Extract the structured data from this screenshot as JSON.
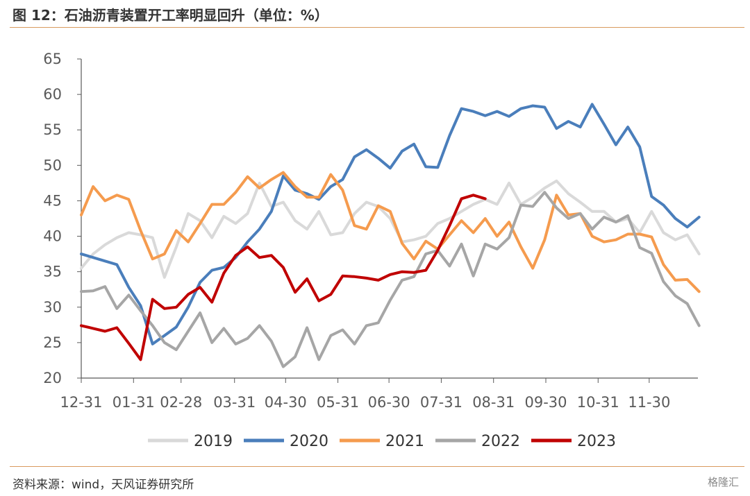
{
  "header": {
    "title": "图 12：石油沥青装置开工率明显回升（单位：%）"
  },
  "footer": {
    "source": "资料来源：wind，天风证券研究所",
    "watermark": "格隆汇"
  },
  "chart_data": {
    "type": "line",
    "title": "",
    "xlabel": "",
    "ylabel": "",
    "ylim": [
      20,
      65
    ],
    "yticks": [
      20,
      25,
      30,
      35,
      40,
      45,
      50,
      55,
      60,
      65
    ],
    "x_ticks": [
      "12-31",
      "01-31",
      "02-28",
      "03-31",
      "04-30",
      "05-31",
      "06-30",
      "07-31",
      "08-31",
      "09-30",
      "10-31",
      "11-30"
    ],
    "x_tick_positions": [
      0,
      4.4,
      8.4,
      12.9,
      17.2,
      21.6,
      25.9,
      30.3,
      34.7,
      39.1,
      43.5,
      47.8
    ],
    "x_range": [
      0,
      51.9
    ],
    "grid": false,
    "legend_position": "bottom",
    "series": [
      {
        "name": "2019",
        "color": "#d9d9d9",
        "values": [
          35.5,
          37.5,
          38.8,
          39.8,
          40.5,
          40.2,
          39.8,
          34.2,
          38.5,
          43.2,
          42.2,
          39.8,
          42.8,
          41.8,
          43.2,
          47.5,
          44.2,
          44.8,
          42.2,
          41.0,
          43.5,
          40.2,
          40.5,
          43.2,
          44.8,
          44.2,
          42.5,
          39.2,
          39.5,
          40.0,
          41.8,
          42.5,
          43.5,
          44.5,
          45.2,
          44.5,
          47.5,
          44.5,
          45.5,
          46.8,
          47.8,
          46.0,
          44.8,
          43.5,
          43.5,
          42.0,
          42.5,
          40.5,
          43.5,
          40.5,
          39.5,
          40.2,
          37.5
        ]
      },
      {
        "name": "2020",
        "color": "#4a7ebb",
        "values": [
          37.5,
          37.0,
          36.5,
          36.0,
          32.8,
          30.2,
          24.8,
          26.0,
          27.2,
          30.0,
          33.5,
          35.2,
          35.6,
          37.0,
          39.2,
          41.0,
          43.5,
          48.5,
          46.5,
          46.0,
          45.2,
          47.0,
          48.0,
          51.2,
          52.2,
          51.0,
          49.6,
          52.0,
          53.0,
          49.8,
          49.7,
          54.2,
          58.0,
          57.6,
          57.0,
          57.6,
          56.9,
          58.0,
          58.4,
          58.2,
          55.2,
          56.2,
          55.4,
          58.6,
          55.8,
          52.9,
          55.4,
          52.6,
          45.6,
          44.4,
          42.5,
          41.3,
          42.7
        ]
      },
      {
        "name": "2021",
        "color": "#f59b4e",
        "values": [
          43.0,
          47.0,
          45.0,
          45.8,
          45.2,
          40.8,
          36.8,
          37.5,
          40.8,
          39.2,
          41.8,
          44.5,
          44.5,
          46.2,
          48.4,
          46.8,
          48.0,
          49.0,
          47.0,
          45.5,
          45.5,
          48.7,
          46.5,
          41.5,
          41.0,
          44.3,
          43.5,
          39.0,
          36.8,
          39.3,
          38.2,
          40.2,
          42.2,
          40.5,
          42.5,
          40.0,
          42.0,
          38.5,
          35.5,
          39.5,
          45.8,
          43.0,
          43.2,
          40.0,
          39.2,
          39.5,
          40.3,
          40.3,
          39.9,
          36.0,
          33.8,
          33.9,
          32.2
        ]
      },
      {
        "name": "2022",
        "color": "#a6a6a6",
        "values": [
          32.2,
          32.3,
          32.9,
          29.8,
          31.7,
          29.5,
          27.4,
          25.0,
          24.0,
          26.6,
          29.2,
          25.0,
          27.0,
          24.8,
          25.6,
          27.4,
          25.2,
          21.6,
          23.0,
          27.1,
          22.6,
          26.0,
          26.8,
          24.8,
          27.4,
          27.8,
          31.0,
          33.8,
          34.3,
          37.5,
          38.0,
          35.8,
          38.9,
          34.4,
          38.9,
          38.2,
          39.8,
          44.4,
          44.2,
          46.2,
          44.0,
          42.5,
          43.2,
          41.0,
          42.7,
          42.0,
          42.9,
          38.4,
          37.6,
          33.6,
          31.6,
          30.5,
          27.4
        ]
      },
      {
        "name": "2023",
        "color": "#c00000",
        "values": [
          27.4,
          27.0,
          26.6,
          27.1,
          24.9,
          22.6,
          31.1,
          29.8,
          30.0,
          31.8,
          32.8,
          30.7,
          34.8,
          37.3,
          38.5,
          37.0,
          37.3,
          35.6,
          32.1,
          34.0,
          30.9,
          31.8,
          34.4,
          34.3,
          34.1,
          33.8,
          34.6,
          35.0,
          34.9,
          35.2,
          38.0,
          41.5,
          45.3,
          45.8,
          45.3
        ]
      }
    ]
  }
}
